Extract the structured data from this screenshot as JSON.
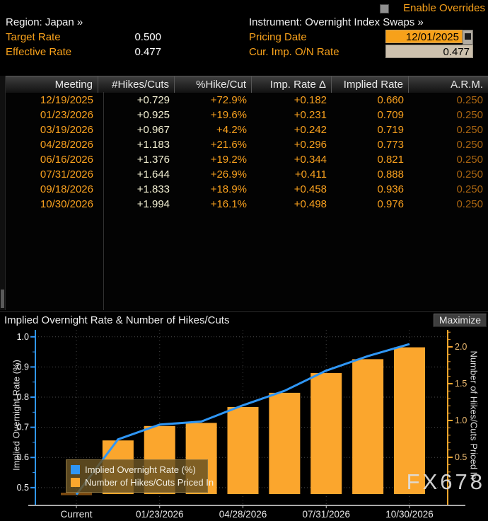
{
  "ui": {
    "enable_overrides": "Enable Overrides"
  },
  "hdr": {
    "region": "Region: Japan »",
    "instrument": "Instrument: Overnight Index Swaps »",
    "target_label": "Target Rate",
    "target_value": "0.500",
    "effective_label": "Effective Rate",
    "effective_value": "0.477",
    "pricing_label": "Pricing Date",
    "pricing_value": "12/01/2025",
    "cur_label": "Cur. Imp. O/N Rate",
    "cur_value": "0.477"
  },
  "table": {
    "columns": [
      "Meeting",
      "#Hikes/Cuts",
      "%Hike/Cut",
      "Imp. Rate Δ",
      "Implied Rate",
      "A.R.M."
    ],
    "rows": [
      [
        "12/19/2025",
        "+0.729",
        "+72.9%",
        "+0.182",
        "0.660",
        "0.250"
      ],
      [
        "01/23/2026",
        "+0.925",
        "+19.6%",
        "+0.231",
        "0.709",
        "0.250"
      ],
      [
        "03/19/2026",
        "+0.967",
        "+4.2%",
        "+0.242",
        "0.719",
        "0.250"
      ],
      [
        "04/28/2026",
        "+1.183",
        "+21.6%",
        "+0.296",
        "0.773",
        "0.250"
      ],
      [
        "06/16/2026",
        "+1.376",
        "+19.2%",
        "+0.344",
        "0.821",
        "0.250"
      ],
      [
        "07/31/2026",
        "+1.644",
        "+26.9%",
        "+0.411",
        "0.888",
        "0.250"
      ],
      [
        "09/18/2026",
        "+1.833",
        "+18.9%",
        "+0.458",
        "0.936",
        "0.250"
      ],
      [
        "10/30/2026",
        "+1.994",
        "+16.1%",
        "+0.498",
        "0.976",
        "0.250"
      ]
    ]
  },
  "chart": {
    "title": "Implied Overnight Rate & Number of Hikes/Cuts",
    "maximize": "Maximize"
  },
  "chart_data": {
    "type": "bar",
    "title": "Implied Overnight Rate & Number of Hikes/Cuts",
    "categories": [
      "Current",
      "12/19/2025",
      "01/23/2026",
      "03/19/2026",
      "04/28/2026",
      "06/16/2026",
      "07/31/2026",
      "09/18/2026",
      "10/30/2026"
    ],
    "series": [
      {
        "name": "Implied Overnight Rate (%)",
        "type": "line",
        "axis": "left",
        "color": "#2f96f5",
        "values": [
          0.477,
          0.66,
          0.709,
          0.719,
          0.773,
          0.821,
          0.888,
          0.936,
          0.976
        ]
      },
      {
        "name": "Number of Hikes/Cuts Priced In",
        "type": "bar",
        "axis": "right",
        "color": "#fba62d",
        "values": [
          0,
          0.729,
          0.925,
          0.967,
          1.183,
          1.376,
          1.644,
          1.833,
          1.994
        ]
      }
    ],
    "left_axis": {
      "label": "Implied Overnight Rate (%)",
      "ticks": [
        0.5,
        0.6,
        0.7,
        0.8,
        0.9,
        1.0
      ],
      "range": [
        0.441,
        1.023
      ]
    },
    "right_axis": {
      "label": "Number of Hikes/Cuts Priced In",
      "ticks": [
        0.5,
        1.0,
        1.5,
        2.0
      ],
      "range": [
        -0.154,
        2.231
      ]
    },
    "x_tick_labels": [
      "Current",
      "01/23/2026",
      "04/28/2026",
      "07/31/2026",
      "10/30/2026"
    ],
    "grid": "dotted",
    "legend_position": "lower-left",
    "current_marker_color": "#7c4a10",
    "watermark": "FX678"
  }
}
